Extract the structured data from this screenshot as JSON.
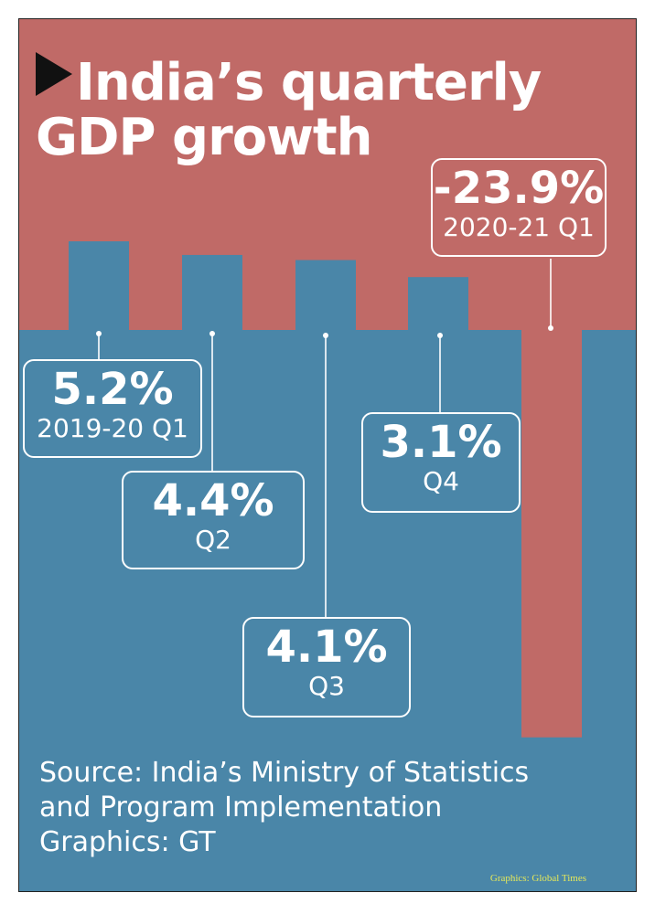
{
  "title_line1": "India’s quarterly",
  "title_line2": "GDP growth",
  "colors": {
    "top": "#c06a67",
    "bottom": "#4a86a8",
    "text": "#ffffff",
    "credit": "#e5e85a",
    "triangle": "#111111"
  },
  "chart_data": {
    "type": "bar",
    "title": "India’s quarterly GDP growth",
    "categories": [
      "2019-20 Q1",
      "Q2",
      "Q3",
      "Q4",
      "2020-21 Q1"
    ],
    "values": [
      5.2,
      4.4,
      4.1,
      3.1,
      -23.9
    ],
    "value_labels": [
      "5.2%",
      "4.4%",
      "4.1%",
      "3.1%",
      "-23.9%"
    ],
    "period_labels": [
      "2019-20 Q1",
      "Q2",
      "Q3",
      "Q4",
      "2020-21 Q1"
    ],
    "unit": "%",
    "xlabel": "",
    "ylabel": "",
    "grid": false,
    "legend": "none"
  },
  "source_line1": "Source: India’s Ministry of Statistics",
  "source_line2": "and Program Implementation",
  "source_line3": "Graphics: GT",
  "credit_small": "Graphics: Global Times"
}
